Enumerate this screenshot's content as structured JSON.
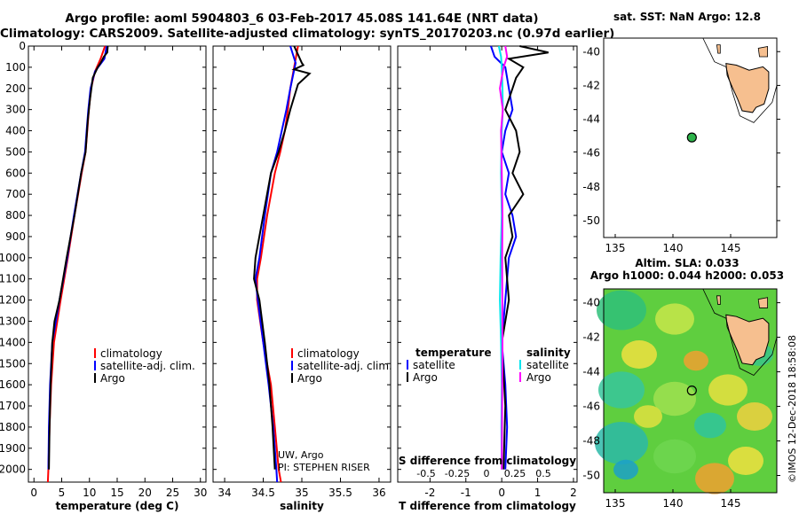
{
  "header": {
    "line1": "Argo profile: aoml 5904803_6 03-Feb-2017 45.08S 141.64E (NRT data)",
    "line2": "Climatology: CARS2009. Satellite-adjusted climatology: synTS_20170203.nc (0.97d earlier)"
  },
  "side_text": "©IMOS 12-Dec-2018 18:58:08",
  "colors": {
    "climatology": "#ff0000",
    "satellite": "#0000ff",
    "argo": "#000000",
    "sal_sat": "#00e5ee",
    "sal_argo": "#ff00ff",
    "land": "#f6bf8f"
  },
  "chart_data": [
    {
      "id": "temperature",
      "type": "line",
      "xlabel": "temperature (deg C)",
      "xlim": [
        -1,
        31
      ],
      "xticks": [
        0,
        5,
        10,
        15,
        20,
        25,
        30
      ],
      "ylim": [
        2060,
        0
      ],
      "yticks": [
        0,
        100,
        200,
        300,
        400,
        500,
        600,
        700,
        800,
        900,
        1000,
        1100,
        1200,
        1300,
        1400,
        1500,
        1600,
        1700,
        1800,
        1900,
        2000
      ],
      "legend": [
        "climatology",
        "satellite-adj. clim.",
        "Argo"
      ],
      "series": [
        {
          "name": "climatology",
          "color": "#ff0000",
          "x": [
            12.8,
            12.0,
            11.0,
            10.3,
            9.9,
            9.6,
            9.3,
            8.6,
            7.3,
            6.1,
            4.8,
            3.6,
            3.1,
            2.8,
            2.6,
            2.5
          ],
          "y": [
            0,
            60,
            120,
            200,
            300,
            400,
            500,
            600,
            800,
            1000,
            1200,
            1400,
            1600,
            1800,
            2000,
            2060
          ]
        },
        {
          "name": "satellite-adj. clim.",
          "color": "#0000ff",
          "x": [
            13.1,
            12.7,
            11.0,
            10.2,
            9.8,
            9.5,
            9.2,
            8.5,
            7.2,
            6.0,
            4.6,
            3.3,
            2.9,
            2.7,
            2.6
          ],
          "y": [
            0,
            60,
            120,
            200,
            300,
            400,
            500,
            600,
            800,
            1000,
            1200,
            1400,
            1600,
            1800,
            2000
          ]
        },
        {
          "name": "Argo",
          "color": "#000000",
          "x": [
            13.3,
            13.2,
            12.6,
            12.0,
            11.5,
            10.6,
            10.1,
            9.7,
            9.3,
            8.5,
            7.3,
            5.9,
            4.6,
            3.7,
            3.3,
            3.0,
            2.8,
            2.7
          ],
          "y": [
            0,
            30,
            50,
            80,
            100,
            150,
            250,
            350,
            500,
            600,
            800,
            1000,
            1200,
            1300,
            1400,
            1600,
            1800,
            2000
          ]
        }
      ]
    },
    {
      "id": "salinity",
      "type": "line",
      "xlabel": "salinity",
      "xlim": [
        33.85,
        36.15
      ],
      "xticks": [
        34,
        34.5,
        35,
        35.5,
        36
      ],
      "ylim": [
        2060,
        0
      ],
      "legend": [
        "climatology",
        "satellite-adj. clim.",
        "Argo"
      ],
      "footnote": [
        "UW, Argo",
        "PI: STEPHEN RISER"
      ],
      "series": [
        {
          "name": "climatology",
          "color": "#ff0000",
          "x": [
            34.95,
            34.9,
            34.85,
            34.82,
            34.78,
            34.72,
            34.65,
            34.55,
            34.47,
            34.42,
            34.42,
            34.5,
            34.6,
            34.65,
            34.7,
            34.73
          ],
          "y": [
            0,
            100,
            200,
            300,
            400,
            500,
            600,
            800,
            1000,
            1100,
            1200,
            1400,
            1600,
            1800,
            2000,
            2060
          ]
        },
        {
          "name": "satellite-adj. clim.",
          "color": "#0000ff",
          "x": [
            34.85,
            34.92,
            34.85,
            34.8,
            34.74,
            34.68,
            34.6,
            34.52,
            34.45,
            34.4,
            34.43,
            34.5,
            34.57,
            34.63,
            34.67,
            34.68
          ],
          "y": [
            0,
            80,
            200,
            300,
            400,
            500,
            600,
            800,
            1000,
            1100,
            1200,
            1400,
            1600,
            1800,
            2000,
            2060
          ]
        },
        {
          "name": "Argo",
          "color": "#000000",
          "x": [
            34.9,
            34.95,
            35.0,
            35.02,
            34.9,
            35.1,
            34.95,
            34.85,
            34.78,
            34.7,
            34.6,
            34.5,
            34.4,
            34.38,
            34.45,
            34.52,
            34.58,
            34.62,
            34.65
          ],
          "y": [
            0,
            40,
            80,
            90,
            110,
            130,
            180,
            300,
            400,
            500,
            600,
            800,
            1000,
            1100,
            1200,
            1400,
            1600,
            1800,
            2000
          ]
        }
      ]
    },
    {
      "id": "differences",
      "type": "line",
      "xlabel": "T difference from climatology",
      "x2label": "S difference from climatology",
      "xlim": [
        -2.9,
        2.1
      ],
      "xticks": [
        -2,
        -1,
        0,
        1,
        2
      ],
      "x2ticks": [
        "-0.5",
        "-0.25",
        "0",
        "0.25",
        "0.5"
      ],
      "ylim": [
        2060,
        0
      ],
      "legend_left_title": "temperature",
      "legend_right_title": "salinity",
      "legend_left": [
        "satellite",
        "Argo"
      ],
      "legend_right": [
        "satellite",
        "Argo"
      ],
      "series": [
        {
          "name": "T satellite",
          "color": "#0000ff",
          "x": [
            -0.3,
            -0.2,
            0.1,
            0.2,
            0.3,
            0.1,
            0.0,
            0.2,
            0.1,
            0.3,
            0.4,
            0.2,
            0.1,
            0.0,
            0.1,
            0.15,
            0.1
          ],
          "y": [
            0,
            50,
            100,
            200,
            300,
            400,
            500,
            600,
            700,
            800,
            900,
            1000,
            1200,
            1400,
            1600,
            1800,
            2000
          ]
        },
        {
          "name": "T Argo",
          "color": "#000000",
          "x": [
            0.5,
            1.3,
            0.2,
            0.6,
            0.4,
            0.3,
            0.1,
            0.4,
            0.5,
            0.3,
            0.6,
            0.2,
            0.3,
            0.1,
            0.2,
            0.0,
            0.1,
            0.05
          ],
          "y": [
            0,
            30,
            60,
            100,
            150,
            200,
            300,
            400,
            500,
            600,
            700,
            800,
            900,
            1000,
            1200,
            1400,
            1700,
            2000
          ]
        },
        {
          "name": "S satellite",
          "color": "#00e5ee",
          "x": [
            -0.08,
            -0.02,
            0.0,
            0.02,
            0.03,
            0.0,
            -0.02,
            0.0,
            -0.03,
            -0.05,
            -0.02,
            0.0,
            -0.01,
            0.0
          ],
          "y": [
            0,
            50,
            100,
            200,
            300,
            400,
            600,
            800,
            1000,
            1200,
            1400,
            1600,
            1800,
            2000
          ]
        },
        {
          "name": "S Argo",
          "color": "#ff00ff",
          "x": [
            0.1,
            0.15,
            0.05,
            -0.05,
            0.03,
            -0.02,
            0.0,
            0.02,
            0.01,
            0.02,
            0.01,
            0.0
          ],
          "y": [
            0,
            50,
            100,
            200,
            300,
            400,
            600,
            800,
            1000,
            1400,
            1700,
            2000
          ]
        }
      ]
    },
    {
      "id": "sst_map",
      "type": "map",
      "title": "sat. SST: NaN Argo: 12.8",
      "xlim": [
        134,
        149
      ],
      "xticks": [
        135,
        140,
        145
      ],
      "ylim": [
        -51,
        -39.2
      ],
      "yticks": [
        -40,
        -42,
        -44,
        -46,
        -48,
        -50
      ],
      "float": {
        "lon": 141.64,
        "lat": -45.08
      }
    },
    {
      "id": "sla_map",
      "type": "map",
      "title": "Altim. SLA: 0.033",
      "subtitle": "Argo h1000: 0.044 h2000: 0.053",
      "xlim": [
        134,
        149
      ],
      "xticks": [
        135,
        140,
        145
      ],
      "ylim": [
        -51,
        -39.2
      ],
      "yticks": [
        -40,
        -42,
        -44,
        -46,
        -48,
        -50
      ],
      "float": {
        "lon": 141.64,
        "lat": -45.08
      }
    }
  ]
}
